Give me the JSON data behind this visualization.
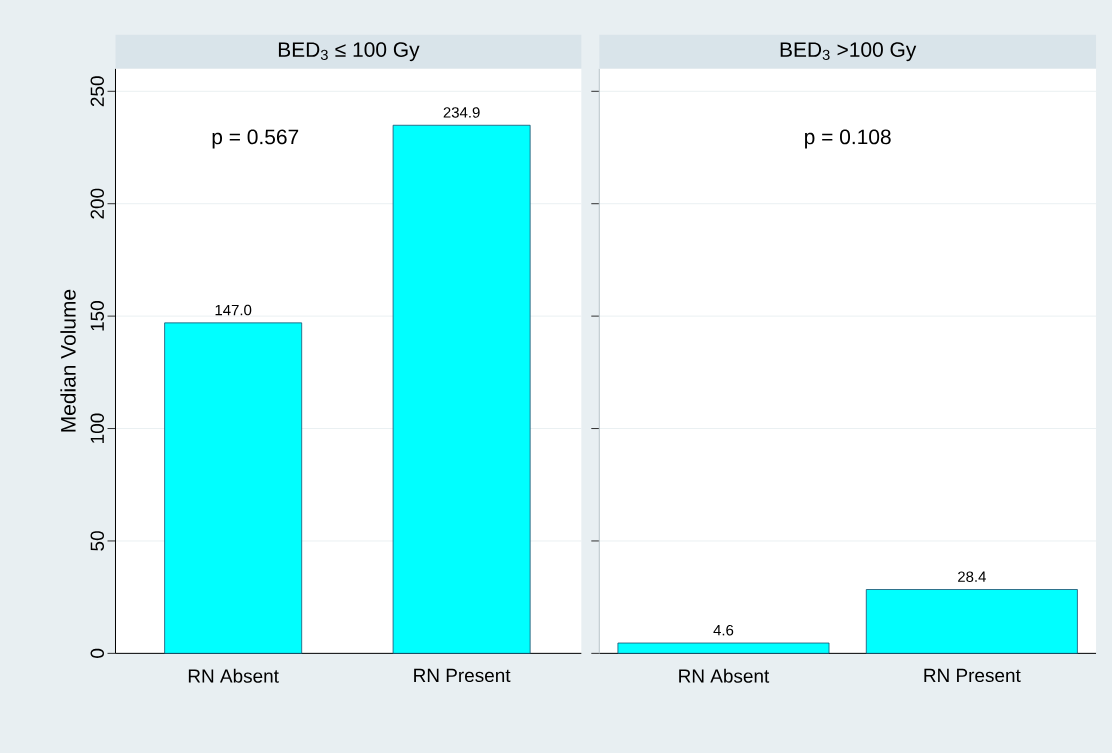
{
  "chart_data": [
    {
      "type": "bar",
      "title": "BED$_{3}$ ≤ 100 Gy",
      "ylabel": "Median Volume",
      "categories": [
        "RN Absent",
        "RN Present"
      ],
      "values": [
        147.0,
        234.9
      ],
      "value_labels": [
        "147.0",
        "234.9"
      ],
      "color": "#00ffff",
      "ylim": [
        0,
        260
      ],
      "yticks": [
        0,
        50,
        100,
        150,
        200,
        250
      ],
      "grid": "y",
      "annotations": [
        "p = 0.567"
      ]
    },
    {
      "type": "bar",
      "title": "BED$_{3}$ >100 Gy",
      "categories": [
        "RN Absent",
        "RN Present"
      ],
      "values": [
        4.6,
        28.4
      ],
      "value_labels": [
        "4.6",
        "28.4"
      ],
      "color": "#00ffff",
      "ylim": [
        0,
        260
      ],
      "yticks": [
        0,
        50,
        100,
        150,
        200,
        250
      ],
      "grid": "y",
      "tick_labels": "x",
      "annotations": [
        "p = 0.108"
      ]
    }
  ]
}
